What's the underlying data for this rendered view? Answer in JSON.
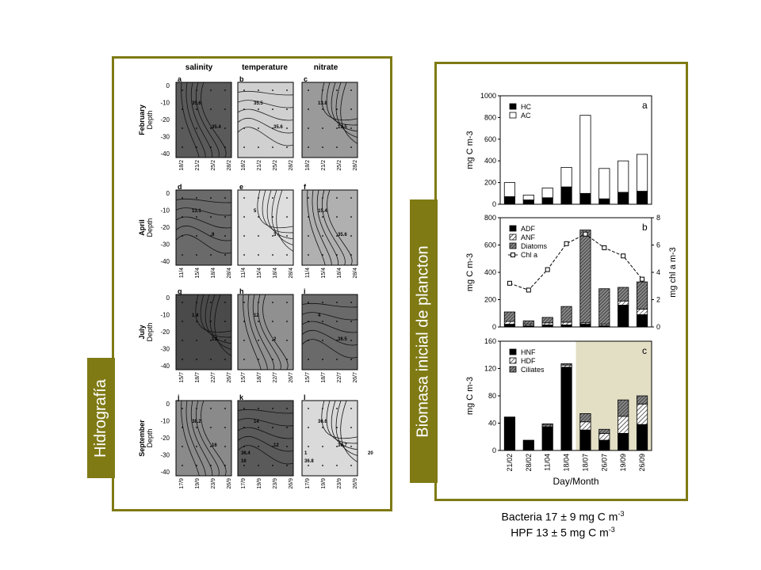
{
  "left_panel": {
    "tab_label": "Hidrografía",
    "columns": [
      "salinity",
      "temperature",
      "nitrate"
    ],
    "rows": [
      {
        "month": "February",
        "letters": [
          "a",
          "b",
          "c"
        ],
        "dates": [
          "18/2",
          "21/2",
          "25/2",
          "28/2"
        ],
        "shades": [
          "#5a5a5a",
          "#d0d0d0",
          "#9a9a9a"
        ]
      },
      {
        "month": "April",
        "letters": [
          "d",
          "e",
          "f"
        ],
        "dates": [
          "11/4",
          "15/4",
          "18/4",
          "28/4"
        ],
        "shades": [
          "#6a6a6a",
          "#dedede",
          "#b0b0b0"
        ]
      },
      {
        "month": "July",
        "letters": [
          "g",
          "h",
          "i"
        ],
        "dates": [
          "15/7",
          "18/7",
          "22/7",
          "26/7"
        ],
        "shades": [
          "#4a4a4a",
          "#909090",
          "#6a6a6a"
        ]
      },
      {
        "month": "September",
        "letters": [
          "j",
          "k",
          "l"
        ],
        "dates": [
          "17/9",
          "19/9",
          "23/9",
          "26/9"
        ],
        "shades": [
          "#8a8a8a",
          "#5a5a5a",
          "#dadada"
        ]
      }
    ],
    "depth_label": "Depth",
    "depth_ticks": [
      "0",
      "-10",
      "-20",
      "-30",
      "-40"
    ],
    "contour_labels": [
      "35.6",
      "35.4",
      "35.5",
      "35.6",
      "13.8",
      "13.5",
      "13.1",
      "9",
      "5",
      "3",
      "15.4",
      "35.6",
      "1.4",
      "13",
      "12",
      "2",
      "4",
      "38.5",
      "38.2",
      "16",
      "14",
      "12",
      "36.6",
      "36.7",
      "36.4",
      "36.8",
      "20",
      "16",
      "1"
    ]
  },
  "right_panel": {
    "tab_label": "Biomasa inicial de plancton",
    "xlabel": "Day/Month",
    "categories": [
      "21/02",
      "28/02",
      "11/04",
      "18/04",
      "18/07",
      "26/07",
      "19/09",
      "26/09"
    ]
  },
  "chart_data": [
    {
      "panel": "a",
      "type": "bar",
      "stacked": true,
      "ylabel": "mg C m-3",
      "ylim": [
        0,
        1000
      ],
      "yticks": [
        "0",
        "200",
        "400",
        "600",
        "800",
        "1000"
      ],
      "categories": [
        "21/02",
        "28/02",
        "11/04",
        "18/04",
        "18/07",
        "26/07",
        "19/09",
        "26/09"
      ],
      "series": [
        {
          "name": "HC",
          "values": [
            70,
            40,
            60,
            160,
            100,
            50,
            110,
            120
          ]
        },
        {
          "name": "AC",
          "values": [
            130,
            45,
            90,
            180,
            720,
            280,
            290,
            340
          ]
        }
      ]
    },
    {
      "panel": "b",
      "type": "bar",
      "stacked": true,
      "ylabel": "mg C m-3",
      "ylabel2": "mg chl a m-3",
      "ylim": [
        0,
        800
      ],
      "ylim2": [
        0,
        8
      ],
      "yticks": [
        "0",
        "200",
        "400",
        "600",
        "800"
      ],
      "yticks2": [
        "0",
        "2",
        "4",
        "6",
        "8"
      ],
      "categories": [
        "21/02",
        "28/02",
        "11/04",
        "18/04",
        "18/07",
        "26/07",
        "19/09",
        "26/09"
      ],
      "series": [
        {
          "name": "ADF",
          "values": [
            20,
            10,
            15,
            15,
            20,
            10,
            160,
            90
          ]
        },
        {
          "name": "ANF",
          "values": [
            20,
            10,
            15,
            20,
            10,
            10,
            30,
            40
          ]
        },
        {
          "name": "Diatoms",
          "values": [
            70,
            25,
            40,
            115,
            680,
            260,
            100,
            200
          ]
        }
      ],
      "line": {
        "name": "Chl a",
        "values": [
          3.2,
          2.7,
          4.2,
          6.1,
          6.8,
          5.8,
          5.2,
          3.5
        ]
      }
    },
    {
      "panel": "c",
      "type": "bar",
      "stacked": true,
      "ylabel": "mg C m-3",
      "ylim": [
        0,
        160
      ],
      "yticks": [
        "0",
        "40",
        "80",
        "120",
        "160"
      ],
      "categories": [
        "21/02",
        "28/02",
        "11/04",
        "18/04",
        "18/07",
        "26/07",
        "19/09",
        "26/09"
      ],
      "series": [
        {
          "name": "HNF",
          "values": [
            49,
            15,
            35,
            122,
            30,
            15,
            25,
            38
          ]
        },
        {
          "name": "HDF",
          "values": [
            0,
            0,
            2,
            3,
            12,
            10,
            25,
            30
          ]
        },
        {
          "name": "Ciliates",
          "values": [
            0,
            0,
            2,
            2,
            12,
            6,
            24,
            12
          ]
        }
      ]
    }
  ],
  "footer": {
    "line1_text": "Bacteria 17 ± 9 mg C m",
    "line1_sup": "-3",
    "line2_text": "HPF 13 ± 5 mg C m",
    "line2_sup": "-3"
  }
}
